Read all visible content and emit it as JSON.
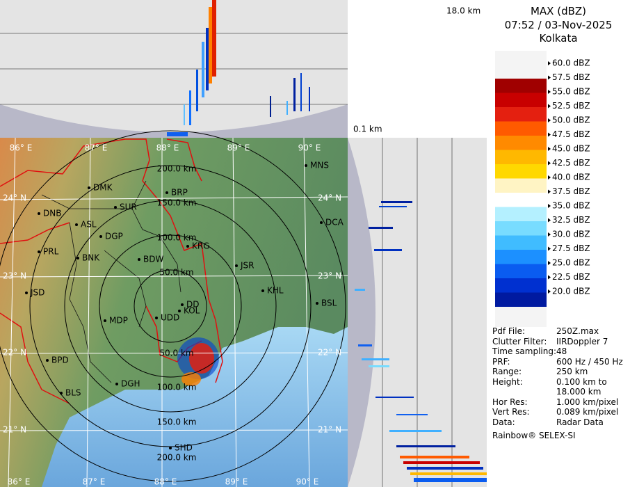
{
  "header": {
    "title": "MAX (dBZ)",
    "time": "07:52 / 03-Nov-2025",
    "location": "Kolkata"
  },
  "legend": {
    "labels": [
      "60.0 dBZ",
      "57.5 dBZ",
      "55.0 dBZ",
      "52.5 dBZ",
      "50.0 dBZ",
      "47.5 dBZ",
      "45.0 dBZ",
      "42.5 dBZ",
      "40.0 dBZ",
      "37.5 dBZ",
      "35.0 dBZ",
      "32.5 dBZ",
      "30.0 dBZ",
      "27.5 dBZ",
      "25.0 dBZ",
      "22.5 dBZ",
      "20.0 dBZ"
    ],
    "band_colors": [
      "#a00000",
      "#c80000",
      "#e42010",
      "#ff5a00",
      "#ff8a00",
      "#ffb800",
      "#ffd800",
      "#fff4c4",
      "#ffffff",
      "#b4f0ff",
      "#78dcff",
      "#40bcff",
      "#1c90ff",
      "#0a5cf0",
      "#0030d0",
      "#001aa0"
    ]
  },
  "info": [
    [
      "Pdf File:",
      "250Z.max"
    ],
    [
      "Clutter Filter:",
      "IIRDoppler 7"
    ],
    [
      "Time sampling:",
      "48"
    ],
    [
      "PRF:",
      "600 Hz / 450 Hz"
    ],
    [
      "Range:",
      "250 km"
    ],
    [
      "Height:",
      "0.100 km to"
    ],
    [
      "",
      "18.000 km"
    ],
    [
      "Hor Res:",
      "1.000 km/pixel"
    ],
    [
      "Vert Res:",
      "0.089 km/pixel"
    ],
    [
      "Data:",
      "Radar Data"
    ]
  ],
  "footer": "Rainbow® SELEX-SI",
  "projection": {
    "top_height": "18.0 km",
    "bottom_height": "0.1 km"
  },
  "map": {
    "lon_labels": [
      "86° E",
      "87° E",
      "88° E",
      "89° E",
      "90° E"
    ],
    "lat_labels": [
      "24° N",
      "23° N",
      "22° N",
      "21° N"
    ],
    "range_labels_north": [
      "50.0 km",
      "100.0 km",
      "150.0 km",
      "200.0 km"
    ],
    "range_labels_south": [
      "50.0 km",
      "100.0 km",
      "150.0 km",
      "200.0 km"
    ],
    "cities": [
      "MNS",
      "BRP",
      "DMK",
      "SUR",
      "DNB",
      "ASL",
      "DGP",
      "DCA",
      "KRG",
      "PRL",
      "BNK",
      "BDW",
      "JSR",
      "KHL",
      "JSD",
      "DD",
      "KOL",
      "UDD",
      "BSL",
      "MDP",
      "BPD",
      "DGH",
      "BLS",
      "SHD"
    ]
  }
}
